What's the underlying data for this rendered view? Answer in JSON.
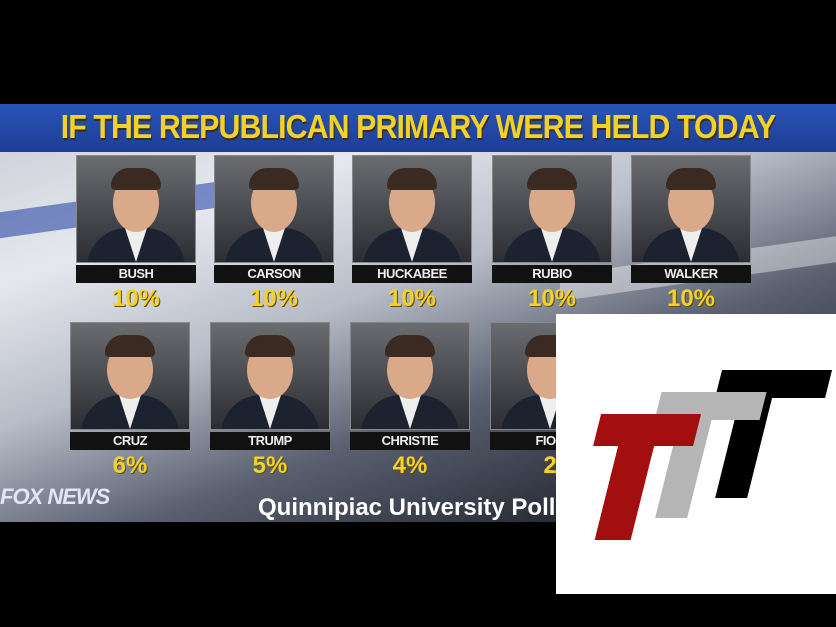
{
  "title": "IF THE REPUBLICAN PRIMARY WERE HELD TODAY",
  "candidates": [
    {
      "name": "BUSH",
      "percent": "10%"
    },
    {
      "name": "CARSON",
      "percent": "10%"
    },
    {
      "name": "HUCKABEE",
      "percent": "10%"
    },
    {
      "name": "RUBIO",
      "percent": "10%"
    },
    {
      "name": "WALKER",
      "percent": "10%"
    },
    {
      "name": "CRUZ",
      "percent": "6%"
    },
    {
      "name": "TRUMP",
      "percent": "5%"
    },
    {
      "name": "CHRISTIE",
      "percent": "4%"
    },
    {
      "name": "FIOR",
      "percent": "2"
    }
  ],
  "source": "Quinnipiac University Poll",
  "network_logo": "FOX NEWS",
  "overlay_logo": {
    "text": "TTT",
    "colors": [
      "#a30f0f",
      "#b5b5b5",
      "#000000"
    ]
  }
}
